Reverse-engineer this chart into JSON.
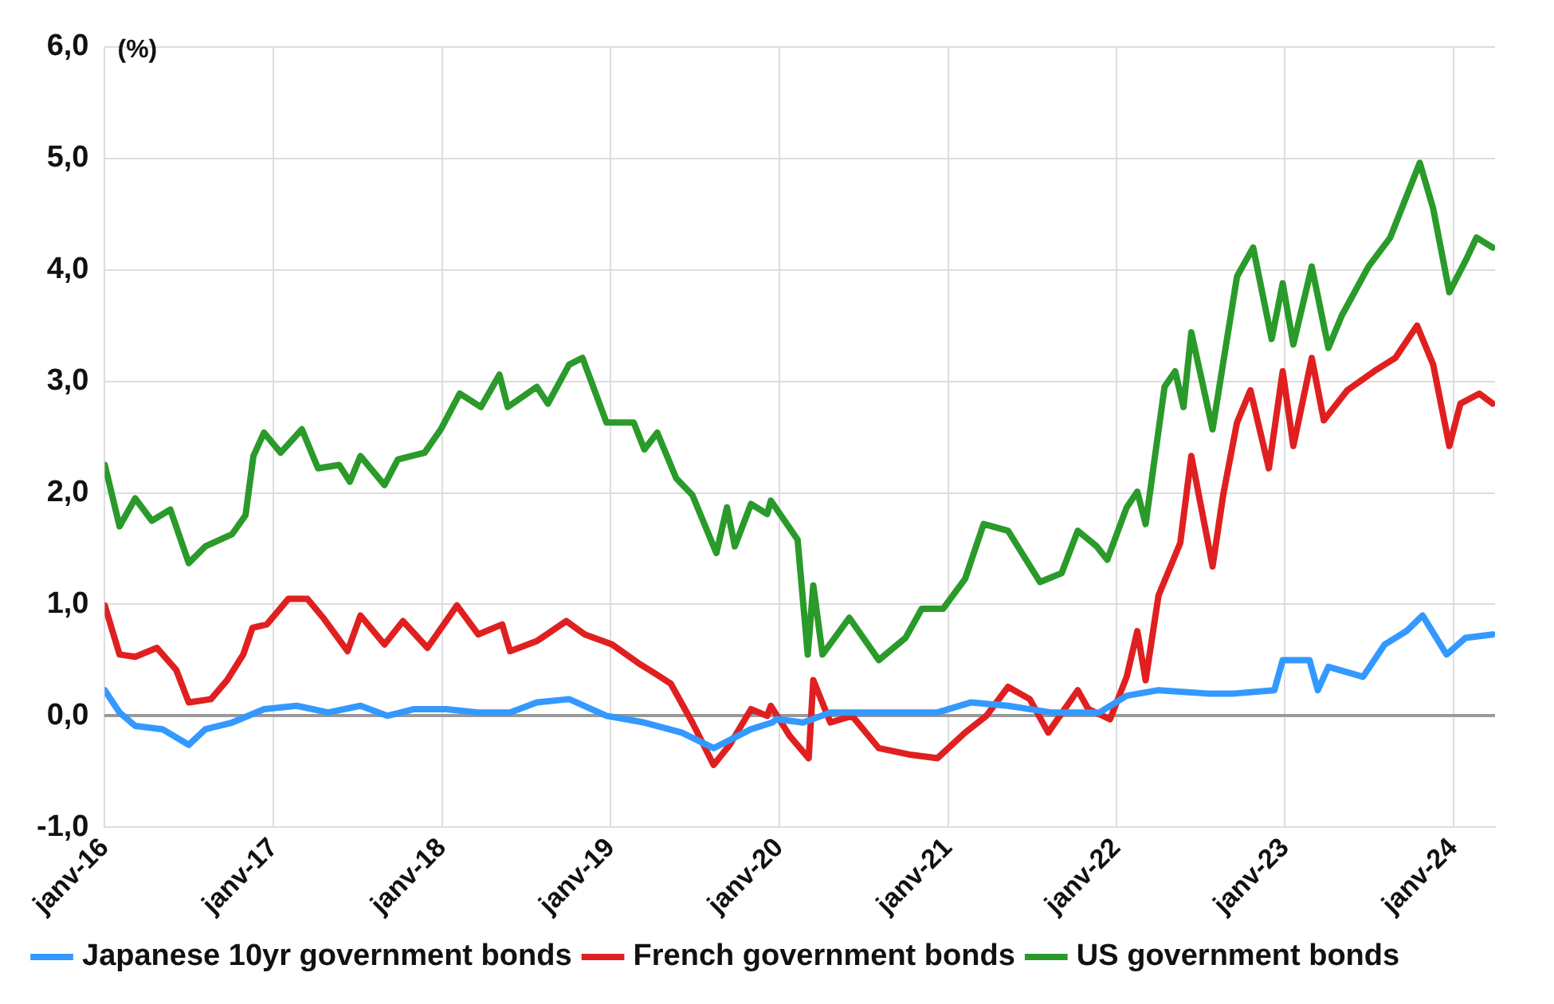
{
  "chart_data": {
    "type": "line",
    "ylabel": "(%)",
    "xlim": [
      "2016-01-01",
      "2024-03-31"
    ],
    "ylim": [
      -1,
      6
    ],
    "xticks": [
      {
        "value": "2016-01",
        "label": "janv-16"
      },
      {
        "value": "2017-01",
        "label": "janv-17"
      },
      {
        "value": "2018-01",
        "label": "janv-18"
      },
      {
        "value": "2019-01",
        "label": "janv-19"
      },
      {
        "value": "2020-01",
        "label": "janv-20"
      },
      {
        "value": "2021-01",
        "label": "janv-21"
      },
      {
        "value": "2022-01",
        "label": "janv-22"
      },
      {
        "value": "2023-01",
        "label": "janv-23"
      },
      {
        "value": "2024-01",
        "label": "janv-24"
      }
    ],
    "yticks": [
      {
        "value": -1,
        "label": "-1,0"
      },
      {
        "value": 0,
        "label": "0,0"
      },
      {
        "value": 1,
        "label": "1,0"
      },
      {
        "value": 2,
        "label": "2,0"
      },
      {
        "value": 3,
        "label": "3,0"
      },
      {
        "value": 4,
        "label": "4,0"
      },
      {
        "value": 5,
        "label": "5,0"
      },
      {
        "value": 6,
        "label": "6,0"
      }
    ],
    "grid": true,
    "legend": "bottom",
    "marker": "none",
    "line_style": "solid",
    "series": [
      {
        "name": "Japanese 10yr government bonds",
        "color": "#3399ff",
        "x": [
          "2016-01-01",
          "2016-02-02",
          "2016-03-07",
          "2016-05-05",
          "2016-07-01",
          "2016-08-06",
          "2016-10-03",
          "2016-12-11",
          "2017-02-20",
          "2017-04-29",
          "2017-07-08",
          "2017-09-04",
          "2017-11-01",
          "2018-01-10",
          "2018-03-20",
          "2018-05-28",
          "2018-07-25",
          "2018-10-03",
          "2018-12-23",
          "2019-03-15",
          "2019-06-04",
          "2019-08-12",
          "2019-11-01",
          "2019-12-17",
          "2019-12-26",
          "2020-02-22",
          "2020-04-21",
          "2020-08-15",
          "2020-12-09",
          "2021-02-19",
          "2021-05-11",
          "2021-08-12",
          "2021-11-25",
          "2022-01-23",
          "2022-04-02",
          "2022-07-17",
          "2022-09-13",
          "2022-12-09",
          "2022-12-27",
          "2023-02-23",
          "2023-03-13",
          "2023-04-05",
          "2023-06-19",
          "2023-08-05",
          "2023-09-21",
          "2023-10-26",
          "2023-12-17",
          "2024-01-27",
          "2024-03-26"
        ],
        "values": [
          0.23,
          0.03,
          -0.09,
          -0.12,
          -0.26,
          -0.12,
          -0.06,
          0.06,
          0.09,
          0.03,
          0.09,
          0.0,
          0.06,
          0.06,
          0.03,
          0.03,
          0.12,
          0.15,
          0.0,
          -0.06,
          -0.15,
          -0.29,
          -0.12,
          -0.06,
          -0.03,
          -0.06,
          0.03,
          0.03,
          0.03,
          0.12,
          0.09,
          0.03,
          0.03,
          0.18,
          0.23,
          0.2,
          0.2,
          0.23,
          0.5,
          0.5,
          0.23,
          0.44,
          0.35,
          0.64,
          0.76,
          0.9,
          0.55,
          0.7,
          0.73
        ]
      },
      {
        "name": "French government bonds",
        "color": "#e02020",
        "x": [
          "2016-01-01",
          "2016-02-02",
          "2016-03-07",
          "2016-04-23",
          "2016-06-04",
          "2016-07-01",
          "2016-08-18",
          "2016-09-22",
          "2016-10-27",
          "2016-11-16",
          "2016-12-17",
          "2017-02-02",
          "2017-03-15",
          "2017-04-18",
          "2017-06-10",
          "2017-07-08",
          "2017-08-29",
          "2017-10-08",
          "2017-11-30",
          "2018-02-02",
          "2018-03-20",
          "2018-05-11",
          "2018-05-28",
          "2018-07-25",
          "2018-09-27",
          "2018-11-06",
          "2019-01-04",
          "2019-03-03",
          "2019-04-07",
          "2019-05-11",
          "2019-06-27",
          "2019-08-12",
          "2019-09-16",
          "2019-11-01",
          "2019-12-06",
          "2019-12-14",
          "2020-01-24",
          "2020-03-05",
          "2020-03-15",
          "2020-04-21",
          "2020-06-07",
          "2020-08-04",
          "2020-10-13",
          "2020-12-09",
          "2021-02-07",
          "2021-03-25",
          "2021-05-11",
          "2021-06-27",
          "2021-08-06",
          "2021-10-09",
          "2021-11-01",
          "2021-12-18",
          "2022-01-23",
          "2022-02-15",
          "2022-03-05",
          "2022-04-02",
          "2022-05-19",
          "2022-06-12",
          "2022-07-28",
          "2022-08-20",
          "2022-09-19",
          "2022-10-18",
          "2022-11-27",
          "2022-12-27",
          "2023-01-19",
          "2023-02-28",
          "2023-03-26",
          "2023-05-16",
          "2023-07-13",
          "2023-08-28",
          "2023-10-14",
          "2023-11-18",
          "2023-12-23",
          "2024-01-16",
          "2024-02-26",
          "2024-03-26"
        ],
        "values": [
          0.99,
          0.55,
          0.53,
          0.61,
          0.41,
          0.12,
          0.15,
          0.32,
          0.55,
          0.79,
          0.82,
          1.05,
          1.05,
          0.88,
          0.58,
          0.9,
          0.64,
          0.85,
          0.61,
          0.99,
          0.73,
          0.82,
          0.58,
          0.67,
          0.85,
          0.73,
          0.64,
          0.47,
          0.38,
          0.29,
          -0.06,
          -0.44,
          -0.26,
          0.06,
          0.0,
          0.09,
          -0.18,
          -0.38,
          0.32,
          -0.06,
          0.0,
          -0.29,
          -0.35,
          -0.38,
          -0.15,
          0.0,
          0.26,
          0.15,
          -0.15,
          0.23,
          0.06,
          -0.03,
          0.35,
          0.76,
          0.32,
          1.08,
          1.55,
          2.33,
          1.34,
          1.98,
          2.63,
          2.92,
          2.22,
          3.09,
          2.42,
          3.21,
          2.65,
          2.92,
          3.09,
          3.21,
          3.5,
          3.15,
          2.42,
          2.8,
          2.89,
          2.8
        ]
      },
      {
        "name": "US government bonds",
        "color": "#2a9a2a",
        "x": [
          "2016-01-01",
          "2016-02-02",
          "2016-03-07",
          "2016-04-12",
          "2016-05-22",
          "2016-07-01",
          "2016-08-06",
          "2016-10-03",
          "2016-11-01",
          "2016-11-18",
          "2016-12-11",
          "2017-01-16",
          "2017-03-03",
          "2017-04-07",
          "2017-05-23",
          "2017-06-15",
          "2017-07-08",
          "2017-08-29",
          "2017-09-27",
          "2017-11-24",
          "2017-12-29",
          "2018-02-08",
          "2018-03-26",
          "2018-05-05",
          "2018-05-23",
          "2018-07-25",
          "2018-08-18",
          "2018-10-03",
          "2018-11-01",
          "2018-12-23",
          "2019-02-20",
          "2019-03-15",
          "2019-04-12",
          "2019-05-23",
          "2019-06-27",
          "2019-08-18",
          "2019-09-10",
          "2019-09-27",
          "2019-11-01",
          "2019-12-06",
          "2019-12-14",
          "2020-02-10",
          "2020-03-03",
          "2020-03-15",
          "2020-04-04",
          "2020-06-01",
          "2020-08-04",
          "2020-10-01",
          "2020-11-05",
          "2020-12-21",
          "2021-02-07",
          "2021-03-19",
          "2021-05-11",
          "2021-07-19",
          "2021-09-04",
          "2021-10-09",
          "2021-11-19",
          "2021-12-12",
          "2022-01-23",
          "2022-02-15",
          "2022-03-05",
          "2022-04-15",
          "2022-05-08",
          "2022-05-26",
          "2022-06-12",
          "2022-07-28",
          "2022-09-19",
          "2022-10-24",
          "2022-12-03",
          "2022-12-27",
          "2023-01-19",
          "2023-02-28",
          "2023-04-05",
          "2023-05-04",
          "2023-07-01",
          "2023-08-17",
          "2023-10-20",
          "2023-11-18",
          "2023-12-23",
          "2024-01-27",
          "2024-02-20",
          "2024-03-26"
        ],
        "values": [
          2.25,
          1.7,
          1.95,
          1.75,
          1.85,
          1.37,
          1.52,
          1.63,
          1.8,
          2.33,
          2.54,
          2.36,
          2.57,
          2.22,
          2.25,
          2.1,
          2.33,
          2.07,
          2.3,
          2.36,
          2.57,
          2.89,
          2.77,
          3.06,
          2.77,
          2.95,
          2.8,
          3.15,
          3.21,
          2.63,
          2.63,
          2.39,
          2.54,
          2.13,
          1.98,
          1.46,
          1.87,
          1.52,
          1.9,
          1.81,
          1.93,
          1.58,
          0.55,
          1.17,
          0.55,
          0.88,
          0.5,
          0.7,
          0.96,
          0.96,
          1.23,
          1.72,
          1.66,
          1.2,
          1.28,
          1.66,
          1.52,
          1.4,
          1.87,
          2.01,
          1.72,
          2.95,
          3.09,
          2.77,
          3.44,
          2.57,
          3.94,
          4.2,
          3.38,
          3.88,
          3.33,
          4.03,
          3.3,
          3.59,
          4.03,
          4.29,
          4.96,
          4.55,
          3.8,
          4.08,
          4.29,
          4.2
        ]
      }
    ]
  }
}
